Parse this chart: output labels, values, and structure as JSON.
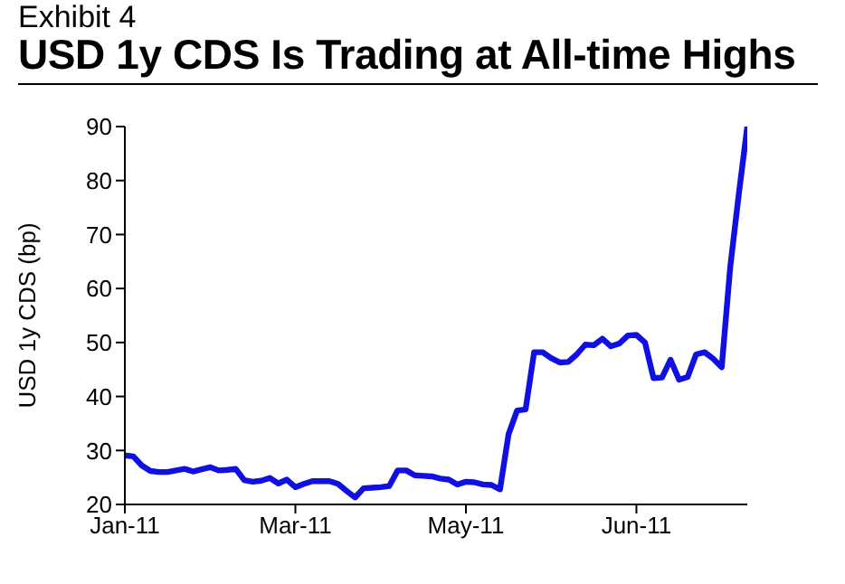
{
  "chart_data": {
    "type": "line",
    "title": "USD 1y CDS Is Trading at All-time Highs",
    "subtitle": "Exhibit 4",
    "ylabel": "USD 1y CDS (bp)",
    "categories": [
      "Jan-11",
      null,
      null,
      null,
      null,
      null,
      null,
      null,
      null,
      null,
      null,
      null,
      null,
      null,
      null,
      null,
      null,
      null,
      null,
      null,
      "Mar-11",
      null,
      null,
      null,
      null,
      null,
      null,
      null,
      null,
      null,
      null,
      null,
      null,
      null,
      null,
      null,
      null,
      null,
      null,
      null,
      "May-11",
      null,
      null,
      null,
      null,
      null,
      null,
      null,
      null,
      null,
      null,
      null,
      null,
      null,
      null,
      null,
      null,
      null,
      null,
      null,
      "Jun-11",
      null,
      null,
      null,
      null,
      null,
      null,
      null,
      null,
      null,
      null,
      null,
      null,
      null
    ],
    "series": [
      {
        "color": "#1010e0",
        "values": [
          29.1,
          28.9,
          27.2,
          26.2,
          26,
          26,
          26.3,
          26.6,
          26.1,
          26.5,
          26.9,
          26.3,
          26.4,
          26.6,
          24.5,
          24.2,
          24.4,
          24.9,
          23.9,
          24.6,
          23.2,
          23.8,
          24.3,
          24.3,
          24.3,
          23.8,
          22.5,
          21.3,
          23,
          23.1,
          23.2,
          23.4,
          26.3,
          26.3,
          25.4,
          25.3,
          25.2,
          24.8,
          24.6,
          23.7,
          24.2,
          24.1,
          23.7,
          23.6,
          22.8,
          33,
          37.4,
          37.6,
          48.2,
          48.2,
          47.1,
          46.3,
          46.4,
          47.8,
          49.6,
          49.5,
          50.7,
          49.3,
          49.8,
          51.3,
          51.4,
          50,
          43.4,
          43.5,
          46.8,
          43.1,
          43.6,
          47.8,
          48.2,
          47,
          45.4,
          64,
          77.4,
          90
        ]
      }
    ],
    "ylim": [
      20,
      90
    ],
    "yticks": [
      20,
      30,
      40,
      50,
      60,
      70,
      80,
      90
    ],
    "grid": false,
    "legend": false,
    "marker": "none",
    "line_style": "solid"
  }
}
